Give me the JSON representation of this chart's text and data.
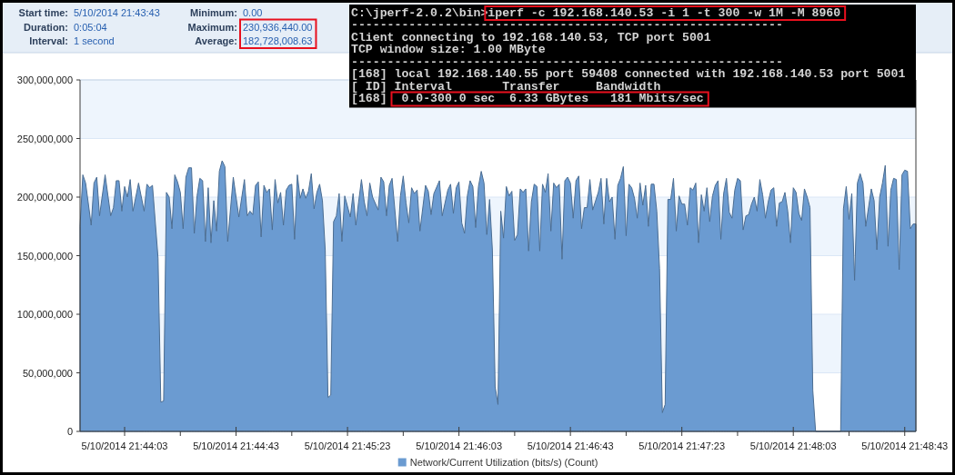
{
  "chart_data": {
    "type": "area",
    "x": [
      "2014-05-10T21:43:47",
      "2014-05-10T21:43:48",
      "2014-05-10T21:43:49",
      "2014-05-10T21:43:51",
      "2014-05-10T21:43:52",
      "2014-05-10T21:43:53",
      "2014-05-10T21:43:54",
      "2014-05-10T21:43:56",
      "2014-05-10T21:43:58",
      "2014-05-10T21:43:59",
      "2014-05-10T21:44:00",
      "2014-05-10T21:44:01",
      "2014-05-10T21:44:02",
      "2014-05-10T21:44:03",
      "2014-05-10T21:44:04",
      "2014-05-10T21:44:05",
      "2014-05-10T21:44:06",
      "2014-05-10T21:44:08",
      "2014-05-10T21:44:10",
      "2014-05-10T21:44:11",
      "2014-05-10T21:44:12",
      "2014-05-10T21:44:13",
      "2014-05-10T21:44:15",
      "2014-05-10T21:44:16",
      "2014-05-10T21:44:17",
      "2014-05-10T21:44:18",
      "2014-05-10T21:44:19",
      "2014-05-10T21:44:20",
      "2014-05-10T21:44:21",
      "2014-05-10T21:44:22",
      "2014-05-10T21:44:23",
      "2014-05-10T21:44:24",
      "2014-05-10T21:44:25",
      "2014-05-10T21:44:26",
      "2014-05-10T21:44:27",
      "2014-05-10T21:44:28",
      "2014-05-10T21:44:29",
      "2014-05-10T21:44:30",
      "2014-05-10T21:44:31",
      "2014-05-10T21:44:32",
      "2014-05-10T21:44:33",
      "2014-05-10T21:44:34",
      "2014-05-10T21:44:35",
      "2014-05-10T21:44:36",
      "2014-05-10T21:44:37",
      "2014-05-10T21:44:38",
      "2014-05-10T21:44:39",
      "2014-05-10T21:44:40",
      "2014-05-10T21:44:42",
      "2014-05-10T21:44:44",
      "2014-05-10T21:44:46",
      "2014-05-10T21:44:47",
      "2014-05-10T21:44:48",
      "2014-05-10T21:44:49",
      "2014-05-10T21:44:50",
      "2014-05-10T21:44:51",
      "2014-05-10T21:44:52",
      "2014-05-10T21:44:53",
      "2014-05-10T21:44:54",
      "2014-05-10T21:44:55",
      "2014-05-10T21:44:56",
      "2014-05-10T21:44:57",
      "2014-05-10T21:44:58",
      "2014-05-10T21:44:59",
      "2014-05-10T21:45:00",
      "2014-05-10T21:45:01",
      "2014-05-10T21:45:02",
      "2014-05-10T21:45:03",
      "2014-05-10T21:45:04",
      "2014-05-10T21:45:05",
      "2014-05-10T21:45:06",
      "2014-05-10T21:45:07",
      "2014-05-10T21:45:08",
      "2014-05-10T21:45:09",
      "2014-05-10T21:45:10",
      "2014-05-10T21:45:11",
      "2014-05-10T21:45:12",
      "2014-05-10T21:45:13",
      "2014-05-10T21:45:14",
      "2014-05-10T21:45:15",
      "2014-05-10T21:45:16",
      "2014-05-10T21:45:17",
      "2014-05-10T21:45:18",
      "2014-05-10T21:45:19",
      "2014-05-10T21:45:20",
      "2014-05-10T21:45:21",
      "2014-05-10T21:45:22",
      "2014-05-10T21:45:24",
      "2014-05-10T21:45:25",
      "2014-05-10T21:45:26",
      "2014-05-10T21:45:27",
      "2014-05-10T21:45:28",
      "2014-05-10T21:45:29",
      "2014-05-10T21:45:30",
      "2014-05-10T21:45:31",
      "2014-05-10T21:45:32",
      "2014-05-10T21:45:34",
      "2014-05-10T21:45:35",
      "2014-05-10T21:45:36",
      "2014-05-10T21:45:37",
      "2014-05-10T21:45:38",
      "2014-05-10T21:45:39",
      "2014-05-10T21:45:41",
      "2014-05-10T21:45:42",
      "2014-05-10T21:45:43",
      "2014-05-10T21:45:44",
      "2014-05-10T21:45:45",
      "2014-05-10T21:45:46",
      "2014-05-10T21:45:47",
      "2014-05-10T21:45:48",
      "2014-05-10T21:45:49",
      "2014-05-10T21:45:51",
      "2014-05-10T21:45:52",
      "2014-05-10T21:45:53",
      "2014-05-10T21:45:54",
      "2014-05-10T21:45:56",
      "2014-05-10T21:45:57",
      "2014-05-10T21:45:59",
      "2014-05-10T21:46:00",
      "2014-05-10T21:46:01",
      "2014-05-10T21:46:02",
      "2014-05-10T21:46:03",
      "2014-05-10T21:46:04",
      "2014-05-10T21:46:05",
      "2014-05-10T21:46:06",
      "2014-05-10T21:46:07",
      "2014-05-10T21:46:08",
      "2014-05-10T21:46:09",
      "2014-05-10T21:46:10",
      "2014-05-10T21:46:11",
      "2014-05-10T21:46:12",
      "2014-05-10T21:46:13",
      "2014-05-10T21:46:14",
      "2014-05-10T21:46:15",
      "2014-05-10T21:46:16",
      "2014-05-10T21:46:17",
      "2014-05-10T21:46:18",
      "2014-05-10T21:46:19",
      "2014-05-10T21:46:20",
      "2014-05-10T21:46:21",
      "2014-05-10T21:46:22",
      "2014-05-10T21:46:23",
      "2014-05-10T21:46:24",
      "2014-05-10T21:46:25",
      "2014-05-10T21:46:26",
      "2014-05-10T21:46:27",
      "2014-05-10T21:46:28",
      "2014-05-10T21:46:29",
      "2014-05-10T21:46:30",
      "2014-05-10T21:46:31",
      "2014-05-10T21:46:32",
      "2014-05-10T21:46:33",
      "2014-05-10T21:46:34",
      "2014-05-10T21:46:35",
      "2014-05-10T21:46:36",
      "2014-05-10T21:46:37",
      "2014-05-10T21:46:38",
      "2014-05-10T21:46:39",
      "2014-05-10T21:46:40",
      "2014-05-10T21:46:41",
      "2014-05-10T21:46:42",
      "2014-05-10T21:46:43",
      "2014-05-10T21:46:44",
      "2014-05-10T21:46:45",
      "2014-05-10T21:46:46",
      "2014-05-10T21:46:47",
      "2014-05-10T21:46:48",
      "2014-05-10T21:46:49",
      "2014-05-10T21:46:50",
      "2014-05-10T21:46:51",
      "2014-05-10T21:46:53",
      "2014-05-10T21:46:54",
      "2014-05-10T21:46:55",
      "2014-05-10T21:46:56",
      "2014-05-10T21:46:57",
      "2014-05-10T21:46:58",
      "2014-05-10T21:46:59",
      "2014-05-10T21:47:00",
      "2014-05-10T21:47:01",
      "2014-05-10T21:47:02",
      "2014-05-10T21:47:03",
      "2014-05-10T21:47:04",
      "2014-05-10T21:47:05",
      "2014-05-10T21:47:06",
      "2014-05-10T21:47:07",
      "2014-05-10T21:47:08",
      "2014-05-10T21:47:09",
      "2014-05-10T21:47:10",
      "2014-05-10T21:47:11",
      "2014-05-10T21:47:12",
      "2014-05-10T21:47:13",
      "2014-05-10T21:47:14",
      "2014-05-10T21:47:15",
      "2014-05-10T21:47:16",
      "2014-05-10T21:47:17",
      "2014-05-10T21:47:18",
      "2014-05-10T21:47:19",
      "2014-05-10T21:47:20",
      "2014-05-10T21:47:21",
      "2014-05-10T21:47:22",
      "2014-05-10T21:47:23",
      "2014-05-10T21:47:24",
      "2014-05-10T21:47:25",
      "2014-05-10T21:47:26",
      "2014-05-10T21:47:27",
      "2014-05-10T21:47:28",
      "2014-05-10T21:47:29",
      "2014-05-10T21:47:30",
      "2014-05-10T21:47:31",
      "2014-05-10T21:47:32",
      "2014-05-10T21:47:33",
      "2014-05-10T21:47:34",
      "2014-05-10T21:47:35",
      "2014-05-10T21:47:36",
      "2014-05-10T21:47:37",
      "2014-05-10T21:47:38",
      "2014-05-10T21:47:39",
      "2014-05-10T21:47:40",
      "2014-05-10T21:47:41",
      "2014-05-10T21:47:42",
      "2014-05-10T21:47:43",
      "2014-05-10T21:47:44",
      "2014-05-10T21:47:45",
      "2014-05-10T21:47:46",
      "2014-05-10T21:47:47",
      "2014-05-10T21:47:48",
      "2014-05-10T21:47:49",
      "2014-05-10T21:47:50",
      "2014-05-10T21:47:51",
      "2014-05-10T21:47:52",
      "2014-05-10T21:47:53",
      "2014-05-10T21:47:54",
      "2014-05-10T21:47:55",
      "2014-05-10T21:47:56",
      "2014-05-10T21:47:57",
      "2014-05-10T21:47:58",
      "2014-05-10T21:47:59",
      "2014-05-10T21:48:00",
      "2014-05-10T21:48:01",
      "2014-05-10T21:48:02",
      "2014-05-10T21:48:03",
      "2014-05-10T21:48:04",
      "2014-05-10T21:48:05",
      "2014-05-10T21:48:06",
      "2014-05-10T21:48:07",
      "2014-05-10T21:48:08",
      "2014-05-10T21:48:09",
      "2014-05-10T21:48:10",
      "2014-05-10T21:48:11",
      "2014-05-10T21:48:20",
      "2014-05-10T21:48:21",
      "2014-05-10T21:48:22",
      "2014-05-10T21:48:23",
      "2014-05-10T21:48:24",
      "2014-05-10T21:48:25",
      "2014-05-10T21:48:26",
      "2014-05-10T21:48:27",
      "2014-05-10T21:48:28",
      "2014-05-10T21:48:29",
      "2014-05-10T21:48:31",
      "2014-05-10T21:48:32",
      "2014-05-10T21:48:33",
      "2014-05-10T21:48:34",
      "2014-05-10T21:48:35",
      "2014-05-10T21:48:36",
      "2014-05-10T21:48:37",
      "2014-05-10T21:48:38",
      "2014-05-10T21:48:39",
      "2014-05-10T21:48:40",
      "2014-05-10T21:48:41",
      "2014-05-10T21:48:42",
      "2014-05-10T21:48:43",
      "2014-05-10T21:48:44",
      "2014-05-10T21:48:45",
      "2014-05-10T21:48:46",
      "2014-05-10T21:48:47"
    ],
    "series": [
      {
        "name": "Network/Current Utilization (bits/s) (Count)",
        "color": "#6b9bd1",
        "values": [
          175000000,
          219000000,
          212000000,
          176000000,
          212000000,
          217000000,
          184000000,
          219000000,
          184000000,
          191000000,
          214000000,
          214000000,
          188000000,
          209000000,
          200000000,
          215000000,
          188000000,
          212000000,
          188000000,
          211000000,
          208000000,
          210000000,
          148000000,
          25000000,
          26000000,
          204000000,
          200000000,
          173000000,
          219000000,
          213000000,
          204000000,
          173000000,
          217000000,
          225000000,
          225000000,
          169000000,
          201000000,
          216000000,
          214000000,
          162000000,
          208000000,
          161000000,
          197000000,
          171000000,
          222000000,
          231000000,
          226000000,
          162000000,
          217000000,
          183000000,
          215000000,
          184000000,
          188000000,
          185000000,
          210000000,
          213000000,
          166000000,
          210000000,
          204000000,
          207000000,
          172000000,
          215000000,
          195000000,
          204000000,
          176000000,
          206000000,
          210000000,
          211000000,
          164000000,
          219000000,
          199000000,
          207000000,
          199000000,
          205000000,
          220000000,
          190000000,
          204000000,
          211000000,
          197000000,
          155000000,
          29000000,
          31000000,
          179000000,
          184000000,
          203000000,
          162000000,
          201000000,
          183000000,
          203000000,
          176000000,
          196000000,
          215000000,
          196000000,
          184000000,
          212000000,
          200000000,
          189000000,
          217000000,
          213000000,
          184000000,
          210000000,
          216000000,
          162000000,
          201000000,
          218000000,
          195000000,
          178000000,
          208000000,
          203000000,
          206000000,
          171000000,
          210000000,
          205000000,
          185000000,
          203000000,
          214000000,
          184000000,
          206000000,
          211000000,
          186000000,
          208000000,
          213000000,
          178000000,
          169000000,
          201000000,
          214000000,
          209000000,
          174000000,
          209000000,
          222000000,
          212000000,
          168000000,
          198000000,
          155000000,
          38000000,
          23000000,
          188000000,
          165000000,
          209000000,
          201000000,
          205000000,
          163000000,
          168000000,
          207000000,
          204000000,
          207000000,
          154000000,
          196000000,
          211000000,
          209000000,
          154000000,
          211000000,
          204000000,
          220000000,
          171000000,
          212000000,
          208000000,
          211000000,
          147000000,
          214000000,
          217000000,
          212000000,
          182000000,
          214000000,
          218000000,
          173000000,
          191000000,
          191000000,
          215000000,
          189000000,
          204000000,
          216000000,
          177000000,
          216000000,
          196000000,
          200000000,
          164000000,
          210000000,
          216000000,
          226000000,
          167000000,
          211000000,
          208000000,
          199000000,
          182000000,
          212000000,
          193000000,
          210000000,
          175000000,
          211000000,
          211000000,
          188000000,
          139000000,
          16000000,
          23000000,
          198000000,
          198000000,
          216000000,
          171000000,
          201000000,
          194000000,
          194000000,
          176000000,
          208000000,
          206000000,
          212000000,
          161000000,
          202000000,
          188000000,
          208000000,
          179000000,
          201000000,
          210000000,
          214000000,
          164000000,
          203000000,
          216000000,
          187000000,
          182000000,
          206000000,
          216000000,
          214000000,
          172000000,
          184000000,
          185000000,
          194000000,
          200000000,
          188000000,
          215000000,
          202000000,
          182000000,
          196000000,
          206000000,
          208000000,
          175000000,
          195000000,
          196000000,
          204000000,
          188000000,
          161000000,
          208000000,
          204000000,
          186000000,
          180000000,
          207000000,
          200000000,
          191000000,
          35000000,
          0,
          0,
          190000000,
          209000000,
          181000000,
          203000000,
          129000000,
          212000000,
          220000000,
          212000000,
          175000000,
          207000000,
          197000000,
          155000000,
          200000000,
          212000000,
          227000000,
          158000000,
          206000000,
          216000000,
          215000000,
          138000000,
          219000000,
          223000000,
          222000000,
          173000000,
          177000000,
          177000000
        ]
      }
    ],
    "xlim": [
      "2014-05-10T21:43:47",
      "2014-05-10T21:48:47"
    ],
    "xticks": [
      {
        "value": "2014-05-10T21:44:03",
        "label": "5/10/2014 21:44:03"
      },
      {
        "value": "2014-05-10T21:44:23",
        "label": null
      },
      {
        "value": "2014-05-10T21:44:43",
        "label": "5/10/2014 21:44:43"
      },
      {
        "value": "2014-05-10T21:45:03",
        "label": null
      },
      {
        "value": "2014-05-10T21:45:23",
        "label": "5/10/2014 21:45:23"
      },
      {
        "value": "2014-05-10T21:45:43",
        "label": null
      },
      {
        "value": "2014-05-10T21:46:03",
        "label": "5/10/2014 21:46:03"
      },
      {
        "value": "2014-05-10T21:46:23",
        "label": null
      },
      {
        "value": "2014-05-10T21:46:43",
        "label": "5/10/2014 21:46:43"
      },
      {
        "value": "2014-05-10T21:47:03",
        "label": null
      },
      {
        "value": "2014-05-10T21:47:23",
        "label": "5/10/2014 21:47:23"
      },
      {
        "value": "2014-05-10T21:47:43",
        "label": null
      },
      {
        "value": "2014-05-10T21:48:03",
        "label": "5/10/2014 21:48:03"
      },
      {
        "value": "2014-05-10T21:48:23",
        "label": null
      },
      {
        "value": "2014-05-10T21:48:43",
        "label": "5/10/2014 21:48:43"
      }
    ],
    "ylim": [
      0,
      300000000
    ],
    "yticks": [
      0,
      {
        "value": 50000000,
        "label": "50,000,000"
      },
      {
        "value": 100000000,
        "label": "100,000,000"
      },
      {
        "value": 150000000,
        "label": "150,000,000"
      },
      {
        "value": 200000000,
        "label": "200,000,000"
      },
      {
        "value": 250000000,
        "label": "250,000,000"
      },
      {
        "value": 300000000,
        "label": "300,000,000"
      }
    ],
    "grid": "y",
    "legend": "bottom",
    "annotations": [
      "Start time: 5/10/2014 21:43:43",
      "Duration: 0:05:04",
      "Interval: 1 second",
      "Minimum: 0.00",
      "Maximum: 230,936,440.00",
      "Average: 182,728,008.63",
      "C:\\jperf-2.0.2\\bin>iperf -c 192.168.140.53 -i 1 -t 300 -w 1M -M 8960",
      "------------------------------------------------------------",
      "Client connecting to 192.168.140.53, TCP port 5001",
      "TCP window size: 1.00 MByte",
      "------------------------------------------------------------",
      "[168] local 192.168.140.55 port 59408 connected with 192.168.140.53 port 5001",
      "[ ID] Interval       Transfer     Bandwidth",
      "[168]  0.0-300.0 sec  6.33 GBytes   181 Mbits/sec"
    ]
  }
}
